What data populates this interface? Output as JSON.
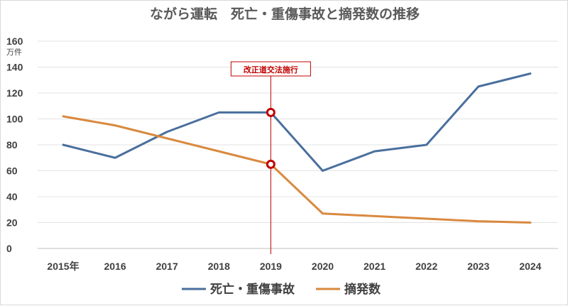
{
  "chart_data": {
    "type": "line",
    "title": "ながら運転　死亡・重傷事故と摘発数の推移",
    "y_unit": "万件",
    "ylim": [
      0,
      160
    ],
    "y_ticks": [
      "0",
      "20",
      "40",
      "60",
      "80",
      "100",
      "120",
      "140",
      "160"
    ],
    "categories": [
      "2015年",
      "2016",
      "2017",
      "2018",
      "2019",
      "2020",
      "2021",
      "2022",
      "2023",
      "2024"
    ],
    "series": [
      {
        "name": "死亡・重傷事故",
        "color": "#4a6f9d",
        "values": [
          80,
          70,
          90,
          105,
          105,
          60,
          75,
          80,
          125,
          135
        ]
      },
      {
        "name": "摘発数",
        "color": "#d9893f",
        "values": [
          102,
          95,
          85,
          75,
          65,
          27,
          25,
          23,
          21,
          20
        ]
      }
    ],
    "annotation": {
      "label": "改正道交法施行",
      "category_index": 4,
      "color": "#c00000"
    },
    "grid": true,
    "legend_position": "bottom"
  }
}
